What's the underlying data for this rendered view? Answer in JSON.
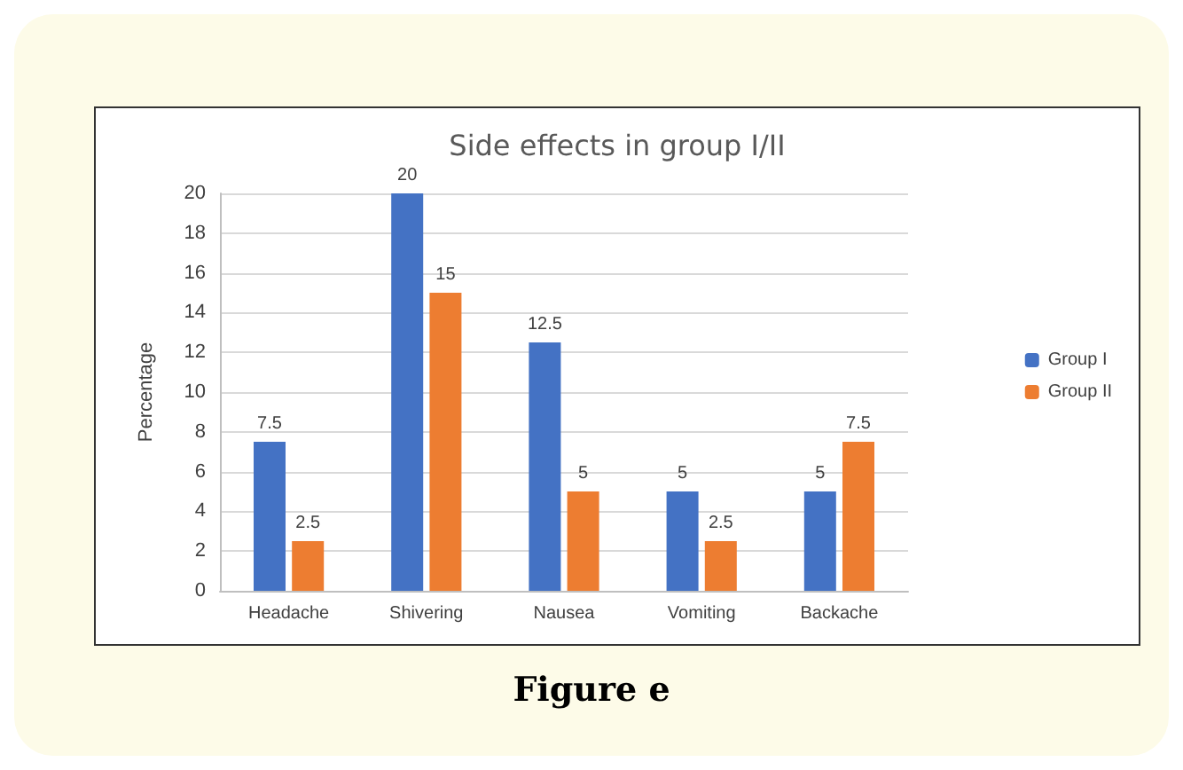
{
  "chart_data": {
    "type": "bar",
    "title": "Side effects in group I/II",
    "ylabel": "Percentage",
    "categories": [
      "Headache",
      "Shivering",
      "Nausea",
      "Vomiting",
      "Backache"
    ],
    "series": [
      {
        "name": "Group I",
        "color": "#4472c4",
        "values": [
          7.5,
          20,
          12.5,
          5,
          5
        ]
      },
      {
        "name": "Group II",
        "color": "#ed7d31",
        "values": [
          2.5,
          15,
          5,
          2.5,
          7.5
        ]
      }
    ],
    "ylim": [
      0,
      20
    ],
    "yticks": [
      0,
      2,
      4,
      6,
      8,
      10,
      12,
      14,
      16,
      18,
      20
    ],
    "grid": "y",
    "legend": "right",
    "data_labels": true,
    "annotations": [
      "Figure e"
    ]
  }
}
